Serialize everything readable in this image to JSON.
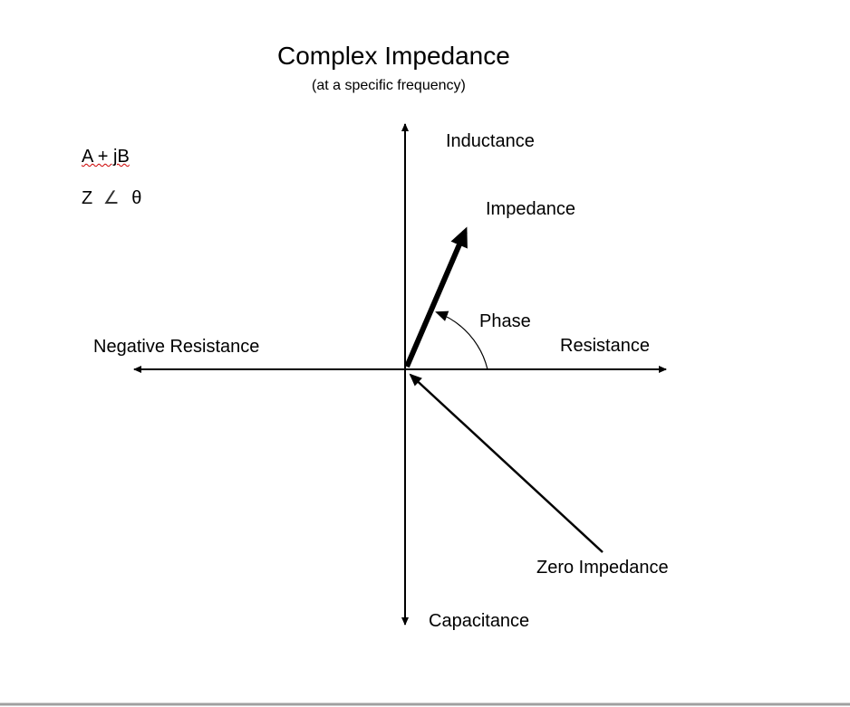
{
  "title": "Complex Impedance",
  "subtitle": "(at a specific frequency)",
  "notation": {
    "rectangular": "A + jB",
    "polar_z": "Z",
    "polar_angle_symbol": "∠",
    "polar_theta": "θ"
  },
  "labels": {
    "positive_imag": "Inductance",
    "negative_imag": "Capacitance",
    "positive_real": "Resistance",
    "negative_real": "Negative Resistance",
    "impedance_vector": "Impedance",
    "phase_angle": "Phase",
    "zero_impedance": "Zero Impedance"
  }
}
